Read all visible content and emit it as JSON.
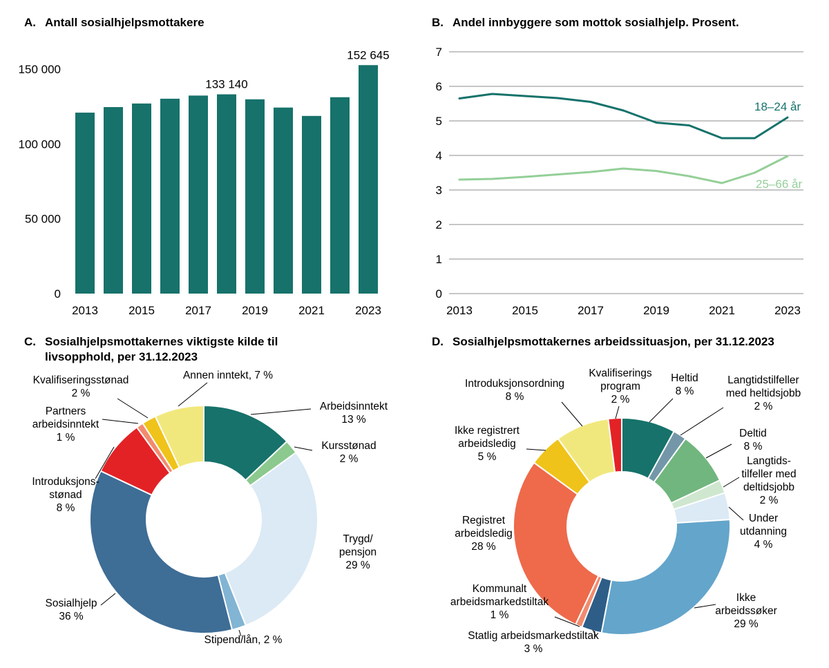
{
  "figure": {
    "background": "#ffffff"
  },
  "panels": {
    "a": {
      "letter": "A.",
      "title": "Antall sosialhjelpsmottakere"
    },
    "b": {
      "letter": "B.",
      "title": "Andel innbyggere som mottok sosialhjelp. Prosent."
    },
    "c": {
      "letter": "C.",
      "title_line1": "Sosialhjelpsmottakernes viktigste kilde til",
      "title_line2": "livsopphold, per 31.12.2023"
    },
    "d": {
      "letter": "D.",
      "title": "Sosialhjelpsmottakernes arbeidssituasjon, per 31.12.2023"
    }
  },
  "chart_data": [
    {
      "id": "a",
      "type": "bar",
      "title": "Antall sosialhjelpsmottakere",
      "categories": [
        2013,
        2014,
        2015,
        2016,
        2017,
        2018,
        2019,
        2020,
        2021,
        2022,
        2023
      ],
      "values": [
        120900,
        124600,
        127000,
        130200,
        132300,
        133140,
        129800,
        124300,
        118700,
        131200,
        152645
      ],
      "bar_labels": {
        "5": "133 140",
        "10": "152 645"
      },
      "x_tick_labels": [
        "2013",
        "2015",
        "2017",
        "2019",
        "2021",
        "2023"
      ],
      "y_ticks": [
        0,
        50000,
        100000,
        150000
      ],
      "y_tick_labels": [
        "0",
        "50 000",
        "100 000",
        "150 000"
      ],
      "ylim": [
        0,
        155000
      ],
      "bar_color": "#16726b",
      "grid": false
    },
    {
      "id": "b",
      "type": "line",
      "title": "Andel innbyggere som mottok sosialhjelp. Prosent.",
      "x": [
        2013,
        2014,
        2015,
        2016,
        2017,
        2018,
        2019,
        2020,
        2021,
        2022,
        2023
      ],
      "series": [
        {
          "name": "18–24 år",
          "color": "#16726b",
          "values": [
            5.65,
            5.78,
            5.72,
            5.66,
            5.55,
            5.3,
            4.95,
            4.87,
            4.5,
            4.5,
            5.1
          ]
        },
        {
          "name": "25–66 år",
          "color": "#94cf98",
          "values": [
            3.3,
            3.32,
            3.38,
            3.45,
            3.52,
            3.62,
            3.55,
            3.4,
            3.2,
            3.5,
            3.98
          ]
        }
      ],
      "y_ticks": [
        0,
        1,
        2,
        3,
        4,
        5,
        6,
        7
      ],
      "x_tick_labels": [
        "2013",
        "2015",
        "2017",
        "2019",
        "2021",
        "2023"
      ],
      "ylim": [
        0,
        7
      ],
      "grid": true,
      "legend_position": "right-inline"
    },
    {
      "id": "c",
      "type": "pie",
      "title": "Sosialhjelpsmottakernes viktigste kilde til livsopphold, per 31.12.2023",
      "slices": [
        {
          "label": "Arbeidsinntekt",
          "pct": 13,
          "color": "#16726b",
          "label_lines": [
            "Arbeidsinntekt",
            "13 %"
          ]
        },
        {
          "label": "Kursstønad",
          "pct": 2,
          "color": "#8bc98e",
          "label_lines": [
            "Kursstønad",
            "2 %"
          ]
        },
        {
          "label": "Trygd/pensjon",
          "pct": 29,
          "color": "#dbeaf5",
          "label_lines": [
            "Trygd/",
            "pensjon",
            "29 %"
          ]
        },
        {
          "label": "Stipend/lån",
          "pct": 2,
          "color": "#82b4d3",
          "label_lines": [
            "Stipend/lån, 2 %"
          ]
        },
        {
          "label": "Sosialhjelp",
          "pct": 36,
          "color": "#3e6d96",
          "label_lines": [
            "Sosialhjelp",
            "36 %"
          ]
        },
        {
          "label": "Introduksjonsstønad",
          "pct": 8,
          "color": "#e32226",
          "label_lines": [
            "Introduksjons-",
            "stønad",
            "8 %"
          ]
        },
        {
          "label": "Partners arbeidsinntekt",
          "pct": 1,
          "color": "#f28b6f",
          "label_lines": [
            "Partners",
            "arbeidsinntekt",
            "1 %"
          ]
        },
        {
          "label": "Kvalifiseringsstønad",
          "pct": 2,
          "color": "#efc319",
          "label_lines": [
            "Kvalifiseringsstønad",
            "2 %"
          ]
        },
        {
          "label": "Annen inntekt",
          "pct": 7,
          "color": "#f1e87d",
          "label_lines": [
            "Annen inntekt, 7 %"
          ]
        }
      ]
    },
    {
      "id": "d",
      "type": "pie",
      "title": "Sosialhjelpsmottakernes arbeidssituasjon, per 31.12.2023",
      "slices": [
        {
          "label": "Heltid",
          "pct": 8,
          "color": "#16726b",
          "label_lines": [
            "Heltid",
            "8 %"
          ]
        },
        {
          "label": "Langtidstilfeller med heltidsjobb",
          "pct": 2,
          "color": "#7397a9",
          "label_lines": [
            "Langtidstilfeller",
            "med heltidsjobb",
            "2 %"
          ]
        },
        {
          "label": "Deltid",
          "pct": 8,
          "color": "#71b67e",
          "label_lines": [
            "Deltid",
            "8 %"
          ]
        },
        {
          "label": "Langtidstilfeller med deltidsjobb",
          "pct": 2,
          "color": "#cfe7cf",
          "label_lines": [
            "Langtids-",
            "tilfeller med",
            "deltidsjobb",
            "2 %"
          ]
        },
        {
          "label": "Under utdanning",
          "pct": 4,
          "color": "#dbeaf5",
          "label_lines": [
            "Under",
            "utdanning",
            "4 %"
          ]
        },
        {
          "label": "Ikke arbeidssøker",
          "pct": 29,
          "color": "#64a5cb",
          "label_lines": [
            "Ikke",
            "arbeidssøker",
            "29 %"
          ]
        },
        {
          "label": "Statlig arbeidsmarkedstiltak",
          "pct": 3,
          "color": "#2e5e88",
          "label_lines": [
            "Statlig arbeidsmarkedstiltak",
            "3 %"
          ]
        },
        {
          "label": "Kommunalt arbeidsmarkedstiltak",
          "pct": 1,
          "color": "#f28b6f",
          "label_lines": [
            "Kommunalt",
            "arbeidsmarkedstiltak",
            "1 %"
          ]
        },
        {
          "label": "Registret arbeidsledig",
          "pct": 28,
          "color": "#ee6a4b",
          "label_lines": [
            "Registret",
            "arbeidsledig",
            "28 %"
          ]
        },
        {
          "label": "Ikke registrert arbeidsledig",
          "pct": 5,
          "color": "#efc319",
          "label_lines": [
            "Ikke registrert",
            "arbeidsledig",
            "5 %"
          ]
        },
        {
          "label": "Introduksjonsordning",
          "pct": 8,
          "color": "#f1e87d",
          "label_lines": [
            "Introduksjonsordning",
            "8 %"
          ]
        },
        {
          "label": "Kvalifiseringsprogram",
          "pct": 2,
          "color": "#e32226",
          "label_lines": [
            "Kvalifiserings",
            "program",
            "2 %"
          ]
        }
      ]
    }
  ]
}
